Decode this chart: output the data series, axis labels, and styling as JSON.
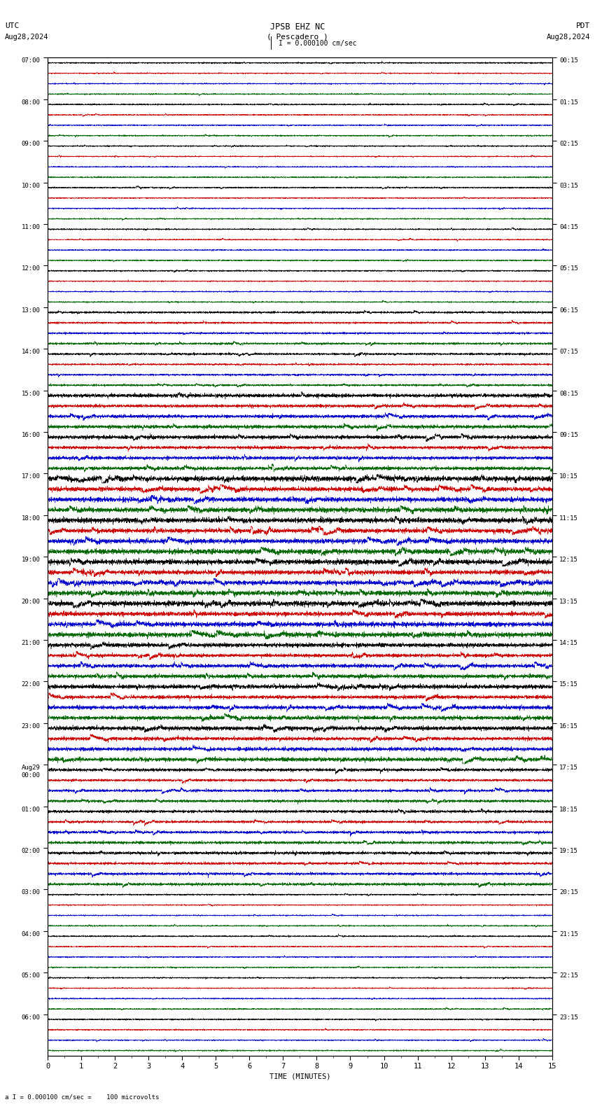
{
  "title_line1": "JPSB EHZ NC",
  "title_line2": "( Pescadero )",
  "scale_label": "I = 0.000100 cm/sec",
  "utc_label": "UTC",
  "utc_date": "Aug28,2024",
  "pdt_label": "PDT",
  "pdt_date": "Aug28,2024",
  "bottom_label": "a I = 0.000100 cm/sec =    100 microvolts",
  "xlabel": "TIME (MINUTES)",
  "left_times": [
    "07:00",
    "08:00",
    "09:00",
    "10:00",
    "11:00",
    "12:00",
    "13:00",
    "14:00",
    "15:00",
    "16:00",
    "17:00",
    "18:00",
    "19:00",
    "20:00",
    "21:00",
    "22:00",
    "23:00",
    "Aug29\n00:00",
    "01:00",
    "02:00",
    "03:00",
    "04:00",
    "05:00",
    "06:00"
  ],
  "right_times": [
    "00:15",
    "01:15",
    "02:15",
    "03:15",
    "04:15",
    "05:15",
    "06:15",
    "07:15",
    "08:15",
    "09:15",
    "10:15",
    "11:15",
    "12:15",
    "13:15",
    "14:15",
    "15:15",
    "16:15",
    "17:15",
    "18:15",
    "19:15",
    "20:15",
    "21:15",
    "22:15",
    "23:15"
  ],
  "n_rows": 24,
  "n_traces_per_row": 4,
  "minutes": 15,
  "bg_color": "white",
  "trace_color_black": "#000000",
  "trace_color_red": "#cc0000",
  "trace_color_blue": "#0000cc",
  "trace_color_green": "#006600",
  "trace_linewidth": 0.35,
  "samples_per_trace": 4500,
  "noise_base": 0.032,
  "spike_clip": 0.42
}
